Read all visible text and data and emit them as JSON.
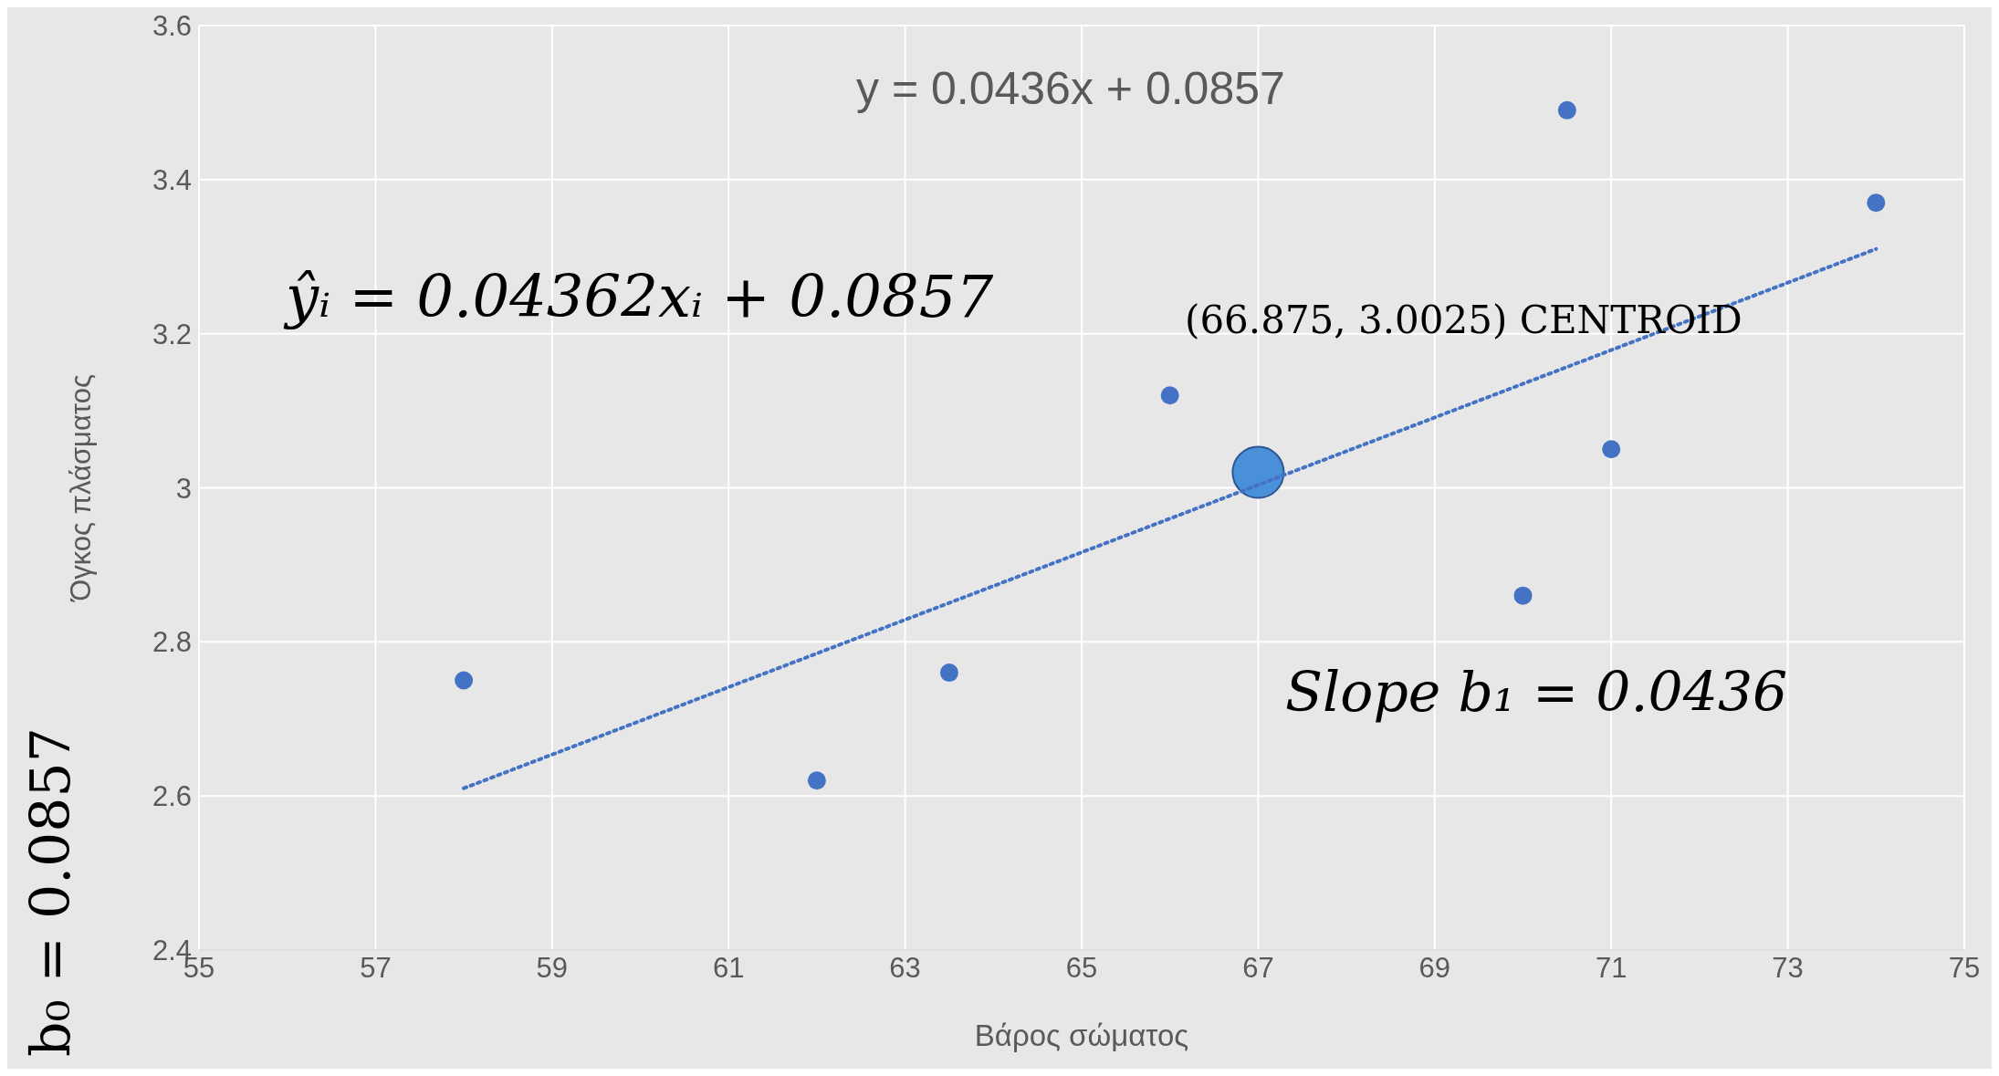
{
  "chart_data": {
    "type": "scatter",
    "xlabel": "Βάρος σώματος",
    "ylabel": "Όγκος πλάσματος",
    "xlim": [
      55,
      75
    ],
    "xticks": [
      55,
      57,
      59,
      61,
      63,
      65,
      67,
      69,
      71,
      73,
      75
    ],
    "ylim": [
      2.4,
      3.6
    ],
    "yticks": [
      2.4,
      2.6,
      2.8,
      3,
      3.2,
      3.4,
      3.6
    ],
    "grid": true,
    "marker": "circle",
    "series": [
      {
        "color": "#4472c4",
        "x": [
          58,
          62,
          63.5,
          66,
          70,
          70.5,
          71,
          74
        ],
        "values": [
          2.75,
          2.62,
          2.76,
          3.12,
          2.86,
          3.49,
          3.05,
          3.37
        ]
      },
      {
        "color": "#4a90d9",
        "x": [
          67
        ],
        "values": [
          3.02
        ]
      },
      {
        "type": "line",
        "color": "#4472c4",
        "line_style": "dotted",
        "marker": "none",
        "x": [
          58,
          74
        ],
        "values": [
          2.61,
          3.31
        ]
      }
    ],
    "annotations": [
      "y = 0.0436x + 0.0857",
      "ŷᵢ = 0.04362xᵢ + 0.0857",
      "(66.875, 3.0025) CENTROID",
      "Slope b₁ = 0.0436",
      "b₀ = 0.0857"
    ]
  }
}
